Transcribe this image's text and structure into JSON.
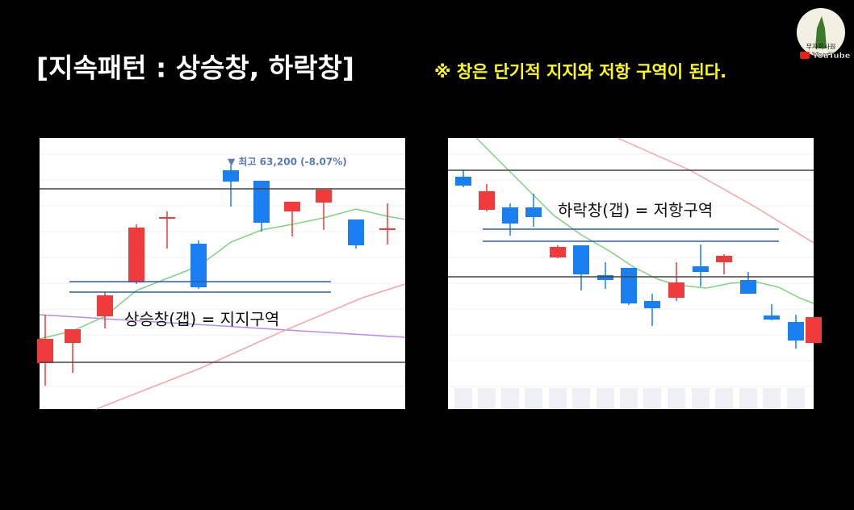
{
  "header": {
    "title": "[지속패턴 : 상승창, 하락창]",
    "note": "※ 창은 단기적 지지와 저항 구역이 된다."
  },
  "logo": {
    "channel": "무자회사원",
    "platform": "YouTube"
  },
  "left_panel": {
    "annotation": "▼ 최고 63,200 (-8.07%)",
    "label": "상승창(갭) = 지지구역"
  },
  "right_panel": {
    "label": "하락창(갭) = 저항구역"
  }
}
